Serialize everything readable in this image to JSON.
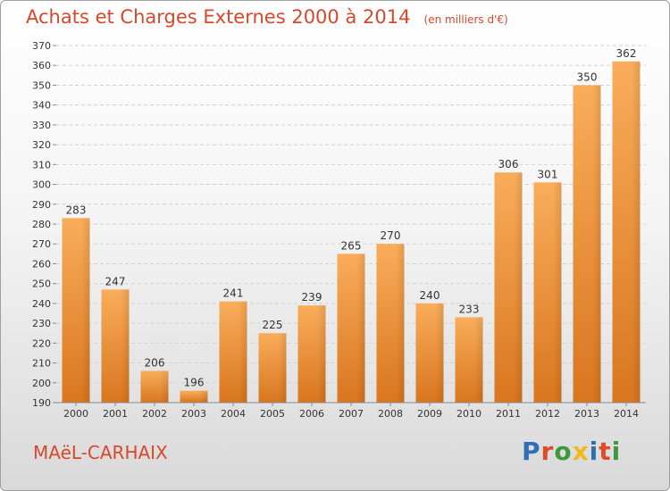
{
  "header": {
    "title": "Achats et Charges Externes 2000 à 2014",
    "subtitle": "(en milliers d'€)"
  },
  "commune": "MAëL-CARHAIX",
  "logo": {
    "letters": [
      {
        "ch": "P",
        "color": "#2f6fb3"
      },
      {
        "ch": "r",
        "color": "#e04a2a"
      },
      {
        "ch": "o",
        "color": "#3d9a3a"
      },
      {
        "ch": "x",
        "color": "#f0b81c"
      },
      {
        "ch": "i",
        "color": "#2f6fb3"
      },
      {
        "ch": "t",
        "color": "#e04a2a"
      },
      {
        "ch": "i",
        "color": "#3d9a3a"
      }
    ]
  },
  "colors": {
    "bar_light": "#f9ad5a",
    "bar_dark": "#d9761f",
    "title": "#d9472b"
  },
  "chart_data": {
    "type": "bar",
    "title": "Achats et Charges Externes 2000 à 2014",
    "xlabel": "",
    "ylabel": "",
    "ylim": [
      190,
      370
    ],
    "yticks": [
      190,
      200,
      210,
      220,
      230,
      240,
      250,
      260,
      270,
      280,
      290,
      300,
      310,
      320,
      330,
      340,
      350,
      360,
      370
    ],
    "grid": true,
    "categories": [
      "2000",
      "2001",
      "2002",
      "2003",
      "2004",
      "2005",
      "2006",
      "2007",
      "2008",
      "2009",
      "2010",
      "2011",
      "2012",
      "2013",
      "2014"
    ],
    "values": [
      283,
      247,
      206,
      196,
      241,
      225,
      239,
      265,
      270,
      240,
      233,
      306,
      301,
      350,
      362
    ]
  }
}
